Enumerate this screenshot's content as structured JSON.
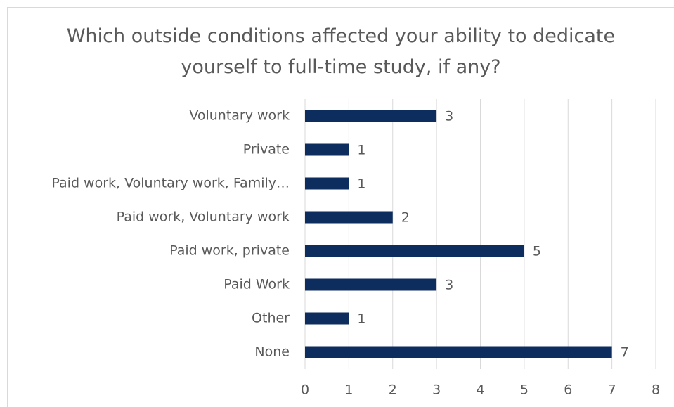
{
  "chart_data": {
    "type": "barh",
    "title": "Which outside conditions affected your ability to dedicate yourself to full-time study, if any?",
    "categories": [
      "Voluntary work",
      "Private",
      "Paid work, Voluntary work, Family…",
      "Paid work, Voluntary work",
      "Paid work, private",
      "Paid Work",
      "Other",
      "None"
    ],
    "values": [
      3,
      1,
      1,
      2,
      5,
      3,
      1,
      7
    ],
    "color": "#0c2d5e",
    "xlim": [
      0,
      8
    ],
    "xticks": [
      0,
      1,
      2,
      3,
      4,
      5,
      6,
      7,
      8
    ],
    "grid": true
  }
}
